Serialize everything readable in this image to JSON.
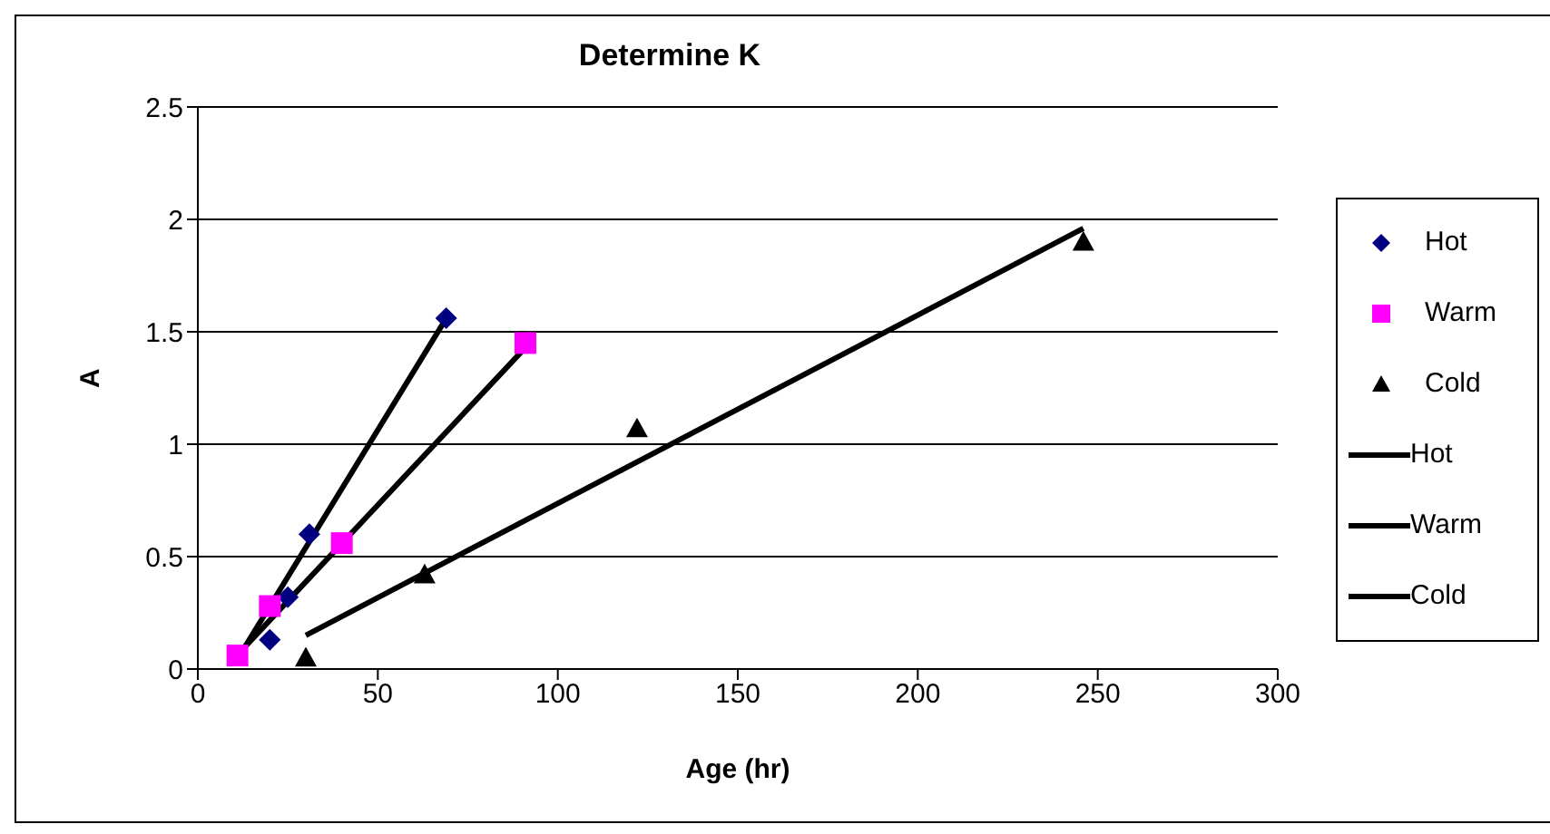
{
  "chart_data": {
    "type": "scatter",
    "title": "Determine K",
    "xlabel": "Age (hr)",
    "ylabel": "A",
    "xlim": [
      0,
      300
    ],
    "xticks": [
      0,
      50,
      100,
      150,
      200,
      250,
      300
    ],
    "ylim": [
      0,
      2.5
    ],
    "yticks": [
      0,
      0.5,
      1,
      1.5,
      2,
      2.5
    ],
    "grid": "y",
    "legend": "right",
    "series": [
      {
        "name": "Hot",
        "marker": "diamond",
        "color": "#000080",
        "x": [
          20,
          25,
          31,
          69
        ],
        "values": [
          0.13,
          0.32,
          0.6,
          1.56
        ]
      },
      {
        "name": "Warm",
        "marker": "square",
        "color": "#ff00ff",
        "x": [
          11,
          20,
          40,
          91
        ],
        "values": [
          0.06,
          0.28,
          0.56,
          1.45
        ]
      },
      {
        "name": "Cold",
        "marker": "triangle",
        "color": "#000000",
        "x": [
          30,
          63,
          122,
          246
        ],
        "values": [
          0.05,
          0.42,
          1.07,
          1.9
        ]
      },
      {
        "name": "Hot",
        "type": "line",
        "color": "#000000",
        "x": [
          12,
          69
        ],
        "values": [
          0.07,
          1.56
        ]
      },
      {
        "name": "Warm",
        "type": "line",
        "color": "#000000",
        "x": [
          12,
          91
        ],
        "values": [
          0.08,
          1.43
        ]
      },
      {
        "name": "Cold",
        "type": "line",
        "color": "#000000",
        "x": [
          30,
          246
        ],
        "values": [
          0.15,
          1.96
        ]
      }
    ]
  }
}
